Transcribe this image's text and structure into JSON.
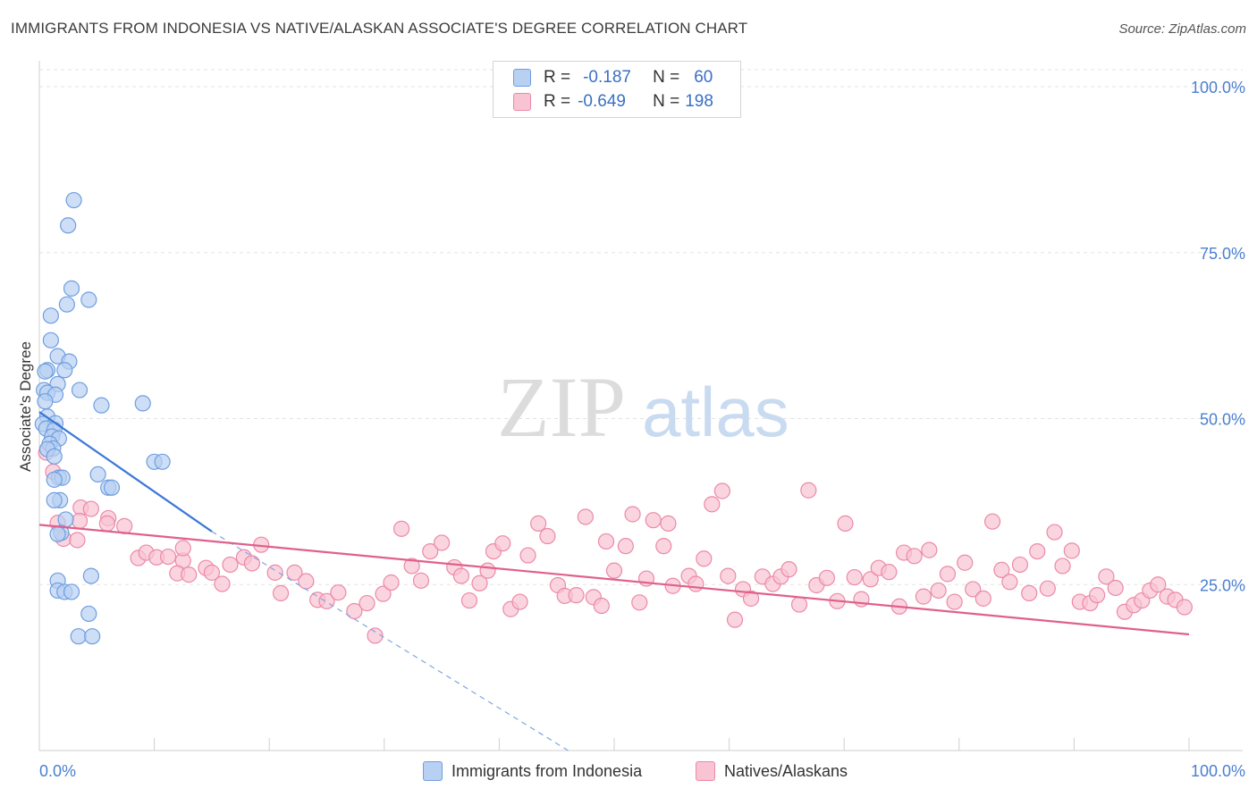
{
  "title": "IMMIGRANTS FROM INDONESIA VS NATIVE/ALASKAN ASSOCIATE'S DEGREE CORRELATION CHART",
  "source": "Source: ZipAtlas.com",
  "watermark": {
    "zip": "ZIP",
    "atlas": "atlas"
  },
  "legend": {
    "r_label": "R =",
    "n_label": "N =",
    "rows": [
      {
        "r": "-0.187",
        "n": "60",
        "fill": "#b8d0f2",
        "stroke": "#6f9ee0"
      },
      {
        "r": "-0.649",
        "n": "198",
        "fill": "#f8c3d3",
        "stroke": "#ec89a8"
      }
    ]
  },
  "bottom_legend": [
    "Immigrants from Indonesia",
    "Natives/Alaskans"
  ],
  "chart_data": {
    "type": "scatter",
    "title": "IMMIGRANTS FROM INDONESIA VS NATIVE/ALASKAN ASSOCIATE'S DEGREE CORRELATION CHART",
    "ylabel": "Associate's Degree",
    "xlabel": "",
    "x_ticks": [
      "0.0%",
      "100.0%"
    ],
    "y_ticks": [
      "100.0%",
      "75.0%",
      "50.0%",
      "25.0%"
    ],
    "xlim": [
      0,
      100
    ],
    "ylim": [
      0,
      102
    ],
    "grid": true,
    "legend_position": "top-center",
    "series": [
      {
        "name": "Immigrants from Indonesia",
        "color": "#6f9ee0",
        "fill": "#b8d0f2",
        "points": [
          [
            3.0,
            82.9
          ],
          [
            2.5,
            79.1
          ],
          [
            4.3,
            67.9
          ],
          [
            2.8,
            69.6
          ],
          [
            2.4,
            67.2
          ],
          [
            1.0,
            65.5
          ],
          [
            1.0,
            61.8
          ],
          [
            1.6,
            59.4
          ],
          [
            2.6,
            58.6
          ],
          [
            0.7,
            57.3
          ],
          [
            0.5,
            57.1
          ],
          [
            2.2,
            57.3
          ],
          [
            1.6,
            55.2
          ],
          [
            3.5,
            54.3
          ],
          [
            0.4,
            54.3
          ],
          [
            0.7,
            53.9
          ],
          [
            1.4,
            53.6
          ],
          [
            0.5,
            52.6
          ],
          [
            5.4,
            52.0
          ],
          [
            9.0,
            52.3
          ],
          [
            0.7,
            50.3
          ],
          [
            0.3,
            49.2
          ],
          [
            1.4,
            49.3
          ],
          [
            0.6,
            48.5
          ],
          [
            1.3,
            48.3
          ],
          [
            1.1,
            47.3
          ],
          [
            1.7,
            47.0
          ],
          [
            0.9,
            46.2
          ],
          [
            1.2,
            45.5
          ],
          [
            0.7,
            45.4
          ],
          [
            1.3,
            44.3
          ],
          [
            10.0,
            43.5
          ],
          [
            10.7,
            43.5
          ],
          [
            5.1,
            41.6
          ],
          [
            1.7,
            41.1
          ],
          [
            2.0,
            41.1
          ],
          [
            1.3,
            40.8
          ],
          [
            6.0,
            39.6
          ],
          [
            6.3,
            39.6
          ],
          [
            1.8,
            37.7
          ],
          [
            1.3,
            37.7
          ],
          [
            2.3,
            34.8
          ],
          [
            1.9,
            32.8
          ],
          [
            1.6,
            32.6
          ],
          [
            4.5,
            26.3
          ],
          [
            1.6,
            25.6
          ],
          [
            1.6,
            24.1
          ],
          [
            2.2,
            23.9
          ],
          [
            2.8,
            23.9
          ],
          [
            4.3,
            20.6
          ],
          [
            3.4,
            17.2
          ],
          [
            4.6,
            17.2
          ]
        ],
        "trend": {
          "x0": 0,
          "y0": 51,
          "x1": 15,
          "y1": 33,
          "dash_to_x": 46,
          "dash_to_y": 0
        }
      },
      {
        "name": "Natives/Alaskans",
        "color": "#ec89a8",
        "fill": "#f8c3d3",
        "points": [
          [
            0.6,
            44.9
          ],
          [
            1.2,
            42.0
          ],
          [
            3.6,
            36.6
          ],
          [
            4.5,
            36.4
          ],
          [
            6.0,
            35.0
          ],
          [
            3.5,
            34.6
          ],
          [
            1.6,
            34.3
          ],
          [
            2.1,
            31.9
          ],
          [
            3.3,
            31.7
          ],
          [
            5.9,
            34.2
          ],
          [
            7.4,
            33.8
          ],
          [
            8.6,
            29.0
          ],
          [
            9.3,
            29.8
          ],
          [
            10.2,
            29.1
          ],
          [
            11.2,
            29.2
          ],
          [
            12.5,
            28.6
          ],
          [
            12.5,
            30.5
          ],
          [
            12.0,
            26.7
          ],
          [
            13.0,
            26.5
          ],
          [
            14.5,
            27.5
          ],
          [
            15.0,
            26.8
          ],
          [
            15.9,
            25.1
          ],
          [
            16.6,
            28.0
          ],
          [
            17.8,
            29.1
          ],
          [
            18.5,
            28.2
          ],
          [
            19.3,
            31.0
          ],
          [
            20.5,
            26.8
          ],
          [
            21.0,
            23.7
          ],
          [
            22.2,
            26.8
          ],
          [
            23.2,
            25.5
          ],
          [
            24.2,
            22.7
          ],
          [
            25.0,
            22.5
          ],
          [
            26.0,
            23.8
          ],
          [
            27.4,
            21.0
          ],
          [
            28.5,
            22.2
          ],
          [
            29.2,
            17.3
          ],
          [
            29.9,
            23.6
          ],
          [
            30.6,
            25.3
          ],
          [
            31.5,
            33.4
          ],
          [
            32.4,
            27.8
          ],
          [
            33.2,
            25.6
          ],
          [
            34.0,
            30.0
          ],
          [
            35.0,
            31.3
          ],
          [
            36.1,
            27.6
          ],
          [
            36.7,
            26.3
          ],
          [
            37.4,
            22.6
          ],
          [
            38.3,
            25.2
          ],
          [
            39.0,
            27.1
          ],
          [
            39.5,
            30.0
          ],
          [
            40.3,
            31.2
          ],
          [
            41.0,
            21.3
          ],
          [
            41.8,
            22.4
          ],
          [
            42.5,
            29.4
          ],
          [
            43.4,
            34.2
          ],
          [
            44.2,
            32.3
          ],
          [
            45.1,
            24.9
          ],
          [
            45.7,
            23.3
          ],
          [
            46.7,
            23.4
          ],
          [
            47.5,
            35.2
          ],
          [
            48.2,
            23.1
          ],
          [
            48.9,
            21.8
          ],
          [
            49.3,
            31.5
          ],
          [
            50.0,
            27.1
          ],
          [
            51.0,
            30.8
          ],
          [
            51.6,
            35.6
          ],
          [
            52.2,
            22.3
          ],
          [
            52.8,
            25.9
          ],
          [
            53.4,
            34.7
          ],
          [
            54.3,
            30.8
          ],
          [
            54.7,
            34.2
          ],
          [
            55.1,
            24.8
          ],
          [
            56.5,
            26.3
          ],
          [
            57.1,
            25.1
          ],
          [
            57.8,
            28.9
          ],
          [
            58.5,
            37.1
          ],
          [
            59.4,
            39.1
          ],
          [
            59.9,
            26.3
          ],
          [
            60.5,
            19.7
          ],
          [
            61.2,
            24.3
          ],
          [
            61.9,
            22.9
          ],
          [
            62.9,
            26.2
          ],
          [
            63.8,
            25.1
          ],
          [
            64.5,
            26.2
          ],
          [
            65.2,
            27.3
          ],
          [
            66.1,
            22.0
          ],
          [
            66.9,
            39.2
          ],
          [
            67.6,
            24.9
          ],
          [
            68.5,
            26.0
          ],
          [
            69.4,
            22.5
          ],
          [
            70.1,
            34.2
          ],
          [
            70.9,
            26.1
          ],
          [
            71.5,
            22.8
          ],
          [
            72.3,
            25.8
          ],
          [
            73.0,
            27.5
          ],
          [
            73.9,
            26.9
          ],
          [
            74.8,
            21.7
          ],
          [
            75.2,
            29.8
          ],
          [
            76.1,
            29.3
          ],
          [
            76.9,
            23.2
          ],
          [
            77.4,
            30.2
          ],
          [
            78.2,
            24.1
          ],
          [
            79.0,
            26.6
          ],
          [
            79.6,
            22.4
          ],
          [
            80.5,
            28.3
          ],
          [
            81.2,
            24.3
          ],
          [
            82.1,
            22.9
          ],
          [
            82.9,
            34.5
          ],
          [
            83.7,
            27.2
          ],
          [
            84.4,
            25.4
          ],
          [
            85.3,
            28.0
          ],
          [
            86.1,
            23.7
          ],
          [
            86.8,
            30.0
          ],
          [
            87.7,
            24.4
          ],
          [
            88.3,
            32.9
          ],
          [
            89.0,
            27.8
          ],
          [
            89.8,
            30.1
          ],
          [
            90.5,
            22.4
          ],
          [
            91.4,
            22.2
          ],
          [
            92.0,
            23.4
          ],
          [
            92.8,
            26.2
          ],
          [
            93.6,
            24.5
          ],
          [
            94.4,
            20.9
          ],
          [
            95.2,
            21.9
          ],
          [
            95.9,
            22.6
          ],
          [
            96.6,
            24.1
          ],
          [
            97.3,
            25.0
          ],
          [
            98.1,
            23.2
          ],
          [
            98.8,
            22.7
          ],
          [
            99.6,
            21.6
          ]
        ],
        "trend": {
          "x0": 0,
          "y0": 34,
          "x1": 100,
          "y1": 17.5
        }
      }
    ]
  }
}
